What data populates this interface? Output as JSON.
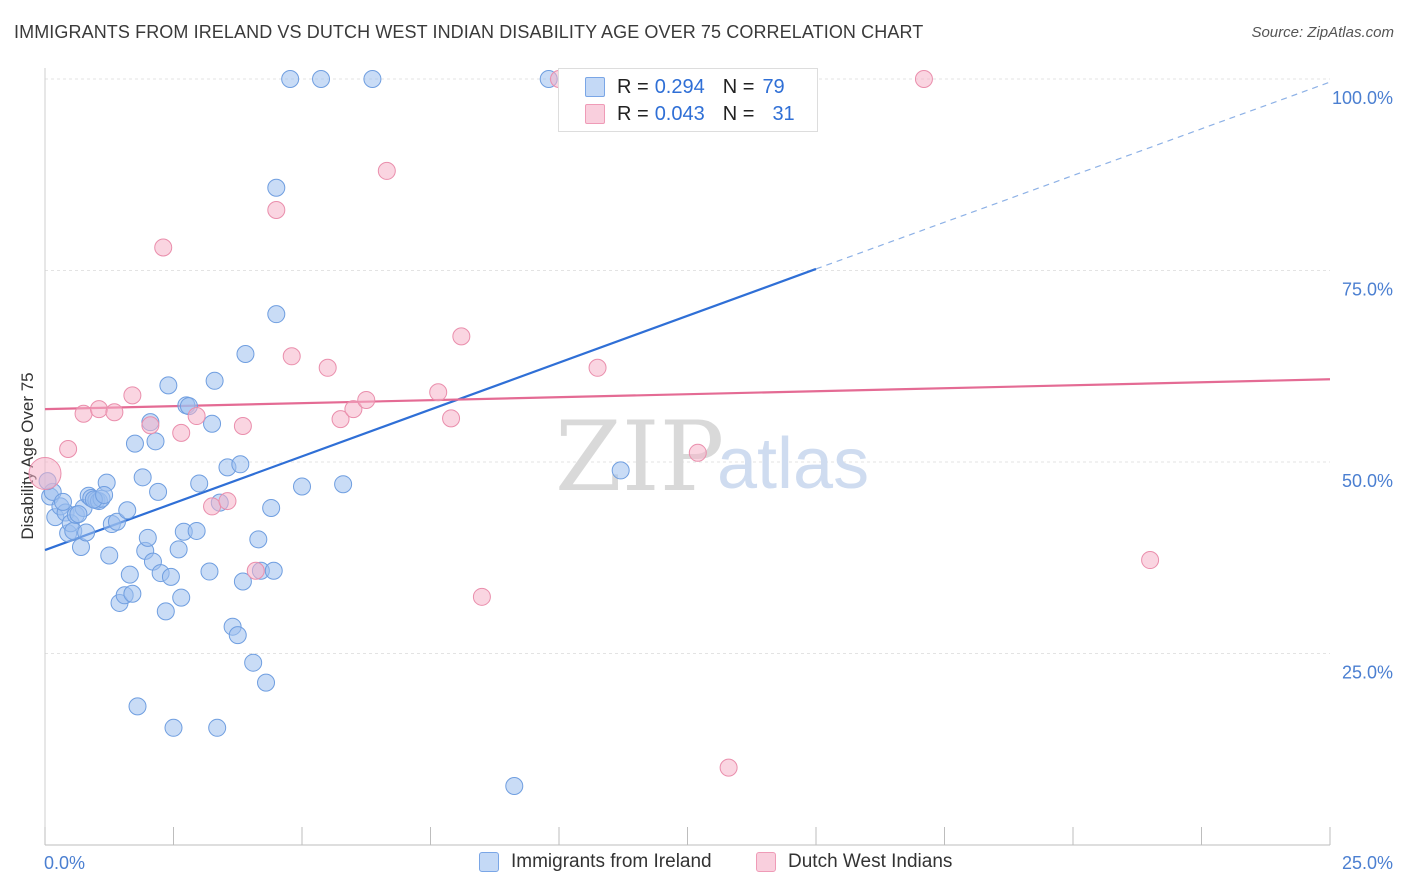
{
  "title": "IMMIGRANTS FROM IRELAND VS DUTCH WEST INDIAN DISABILITY AGE OVER 75 CORRELATION CHART",
  "source": "Source: ZipAtlas.com",
  "watermark": {
    "zip": "ZIP",
    "atlas": "atlas"
  },
  "legend": {
    "rows": [
      {
        "r_label": "R = ",
        "r_value": "0.294",
        "n_label": "N = ",
        "n_value": "79",
        "color": "#9dbfee"
      },
      {
        "r_label": "R = ",
        "r_value": "0.043",
        "n_label": "N = ",
        "n_value": "31",
        "color": "#f5b3c8"
      }
    ]
  },
  "bottom_legend": [
    "Immigrants from Ireland",
    "Dutch West Indians"
  ],
  "chart_data": {
    "type": "scatter",
    "title": "IMMIGRANTS FROM IRELAND VS DUTCH WEST INDIAN DISABILITY AGE OVER 75 CORRELATION CHART",
    "xlabel": "",
    "ylabel": "Disability Age Over 75",
    "xlim": [
      0,
      25
    ],
    "ylim": [
      0,
      100
    ],
    "x_tick_labels": [
      "0.0%",
      "25.0%"
    ],
    "y_tick_labels": [
      "25.0%",
      "50.0%",
      "75.0%",
      "100.0%"
    ],
    "y_ticks": [
      25,
      50,
      75,
      100
    ],
    "grid": true,
    "legend_position": "top-center",
    "series": [
      {
        "name": "Immigrants from Ireland",
        "color": "#9dbfee",
        "stroke": "#6f9ee0",
        "trend": {
          "x0": 0,
          "y0": 38.5,
          "x1": 15,
          "y1": 75.2,
          "dashed_to_x": 25,
          "dashed_to_y": 99.6,
          "color": "#2f6fd6"
        },
        "points": [
          [
            0.1,
            45.5
          ],
          [
            0.2,
            42.8
          ],
          [
            0.3,
            44.2
          ],
          [
            0.4,
            43.4
          ],
          [
            0.45,
            40.7
          ],
          [
            0.5,
            42
          ],
          [
            0.55,
            41
          ],
          [
            0.6,
            43.1
          ],
          [
            0.7,
            38.9
          ],
          [
            0.75,
            44
          ],
          [
            0.8,
            40.8
          ],
          [
            0.85,
            45.6
          ],
          [
            0.9,
            45.3
          ],
          [
            1.0,
            45
          ],
          [
            1.05,
            44.9
          ],
          [
            1.1,
            45.2
          ],
          [
            1.2,
            47.3
          ],
          [
            1.25,
            37.8
          ],
          [
            1.3,
            41.9
          ],
          [
            1.4,
            42.2
          ],
          [
            1.45,
            31.6
          ],
          [
            1.55,
            32.6
          ],
          [
            1.6,
            43.7
          ],
          [
            1.65,
            35.3
          ],
          [
            1.7,
            32.8
          ],
          [
            1.75,
            52.4
          ],
          [
            1.8,
            18.1
          ],
          [
            1.9,
            48
          ],
          [
            1.95,
            38.4
          ],
          [
            2.0,
            40.1
          ],
          [
            2.05,
            55.2
          ],
          [
            2.1,
            37
          ],
          [
            2.15,
            52.7
          ],
          [
            2.2,
            46.1
          ],
          [
            2.25,
            35.5
          ],
          [
            2.35,
            30.5
          ],
          [
            2.4,
            60
          ],
          [
            2.45,
            35
          ],
          [
            2.5,
            15.3
          ],
          [
            2.6,
            38.6
          ],
          [
            2.65,
            32.3
          ],
          [
            2.7,
            40.9
          ],
          [
            2.75,
            57.4
          ],
          [
            2.8,
            57.3
          ],
          [
            2.95,
            41
          ],
          [
            3.0,
            47.2
          ],
          [
            3.2,
            35.7
          ],
          [
            3.25,
            55
          ],
          [
            3.3,
            60.6
          ],
          [
            3.35,
            15.3
          ],
          [
            3.4,
            44.7
          ],
          [
            3.55,
            49.3
          ],
          [
            3.65,
            28.5
          ],
          [
            3.75,
            27.4
          ],
          [
            3.8,
            49.7
          ],
          [
            3.85,
            34.4
          ],
          [
            3.9,
            64.1
          ],
          [
            4.05,
            23.8
          ],
          [
            4.15,
            39.9
          ],
          [
            4.2,
            35.8
          ],
          [
            4.3,
            21.2
          ],
          [
            4.4,
            44
          ],
          [
            4.45,
            35.8
          ],
          [
            4.5,
            69.3
          ],
          [
            4.5,
            85.8
          ],
          [
            4.77,
            100
          ],
          [
            5.0,
            46.8
          ],
          [
            5.37,
            100
          ],
          [
            5.8,
            47.1
          ],
          [
            6.37,
            100
          ],
          [
            9.13,
            7.7
          ],
          [
            9.8,
            100
          ],
          [
            11.2,
            48.9
          ],
          [
            0.15,
            46.1
          ],
          [
            0.35,
            44.8
          ],
          [
            0.65,
            43.2
          ],
          [
            0.95,
            45.1
          ],
          [
            1.15,
            45.7
          ],
          [
            0.05,
            47.5
          ]
        ]
      },
      {
        "name": "Dutch West Indians",
        "color": "#f5b3c8",
        "stroke": "#ea8eac",
        "trend": {
          "x0": 0,
          "y0": 56.9,
          "x1": 25,
          "y1": 60.8,
          "color": "#e46b94"
        },
        "points": [
          [
            0.0,
            48.5
          ],
          [
            0.45,
            51.7
          ],
          [
            0.75,
            56.3
          ],
          [
            1.05,
            56.9
          ],
          [
            1.35,
            56.5
          ],
          [
            1.7,
            58.7
          ],
          [
            2.05,
            54.8
          ],
          [
            2.3,
            78
          ],
          [
            2.65,
            53.8
          ],
          [
            2.95,
            56
          ],
          [
            3.25,
            44.2
          ],
          [
            3.55,
            44.9
          ],
          [
            3.85,
            54.7
          ],
          [
            4.1,
            35.8
          ],
          [
            4.5,
            82.9
          ],
          [
            4.8,
            63.8
          ],
          [
            5.5,
            62.3
          ],
          [
            5.75,
            55.6
          ],
          [
            6.0,
            56.9
          ],
          [
            6.25,
            58.1
          ],
          [
            6.65,
            88
          ],
          [
            7.65,
            59.1
          ],
          [
            7.9,
            55.7
          ],
          [
            8.1,
            66.4
          ],
          [
            8.5,
            32.4
          ],
          [
            10.0,
            100
          ],
          [
            10.75,
            62.3
          ],
          [
            12.7,
            51.2
          ],
          [
            13.3,
            10.1
          ],
          [
            17.1,
            100
          ],
          [
            21.5,
            37.2
          ]
        ]
      }
    ]
  }
}
